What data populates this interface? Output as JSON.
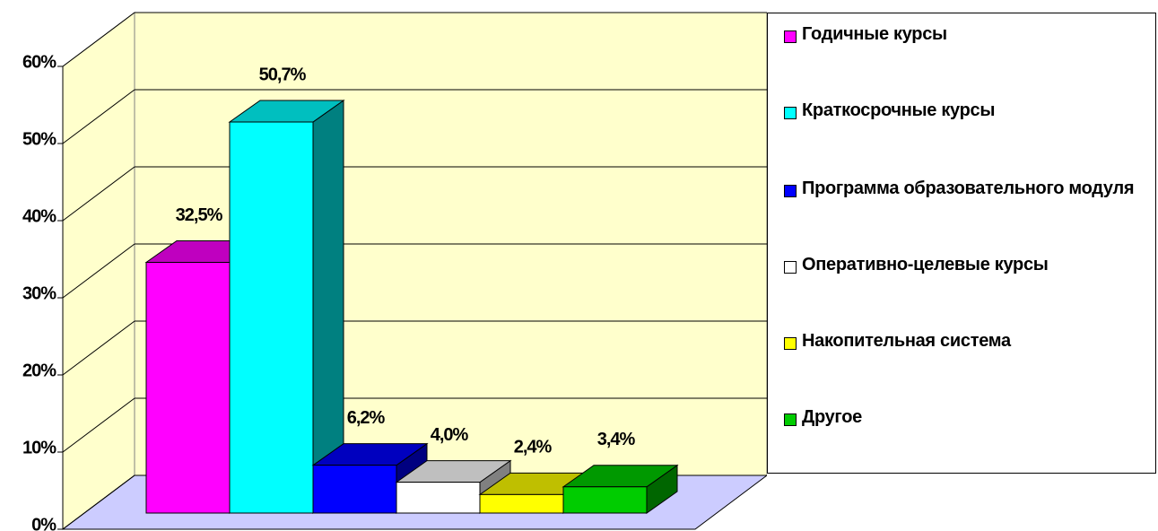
{
  "chart_data": {
    "type": "bar3d",
    "categories": [
      "Годичные курсы",
      "Краткосрочные курсы",
      "Программа образовательного модуля",
      "Оперативно-целевые курсы",
      "Накопительная система",
      "Другое"
    ],
    "values": [
      32.5,
      50.7,
      6.2,
      4.0,
      2.4,
      3.4
    ],
    "value_labels": [
      "32,5%",
      "50,7%",
      "6,2%",
      "4,0%",
      "2,4%",
      "3,4%"
    ],
    "colors": [
      "#ff00ff",
      "#00ffff",
      "#0000ff",
      "#ffffff",
      "#ffff00",
      "#00cc00"
    ],
    "ylim": [
      0,
      60
    ],
    "yticks": [
      {
        "value": 0,
        "label": "0%"
      },
      {
        "value": 10,
        "label": "10%"
      },
      {
        "value": 20,
        "label": "20%"
      },
      {
        "value": 30,
        "label": "30%"
      },
      {
        "value": 40,
        "label": "40%"
      },
      {
        "value": 50,
        "label": "50%"
      },
      {
        "value": 60,
        "label": "60%"
      }
    ],
    "grid": true,
    "legend": "right"
  }
}
